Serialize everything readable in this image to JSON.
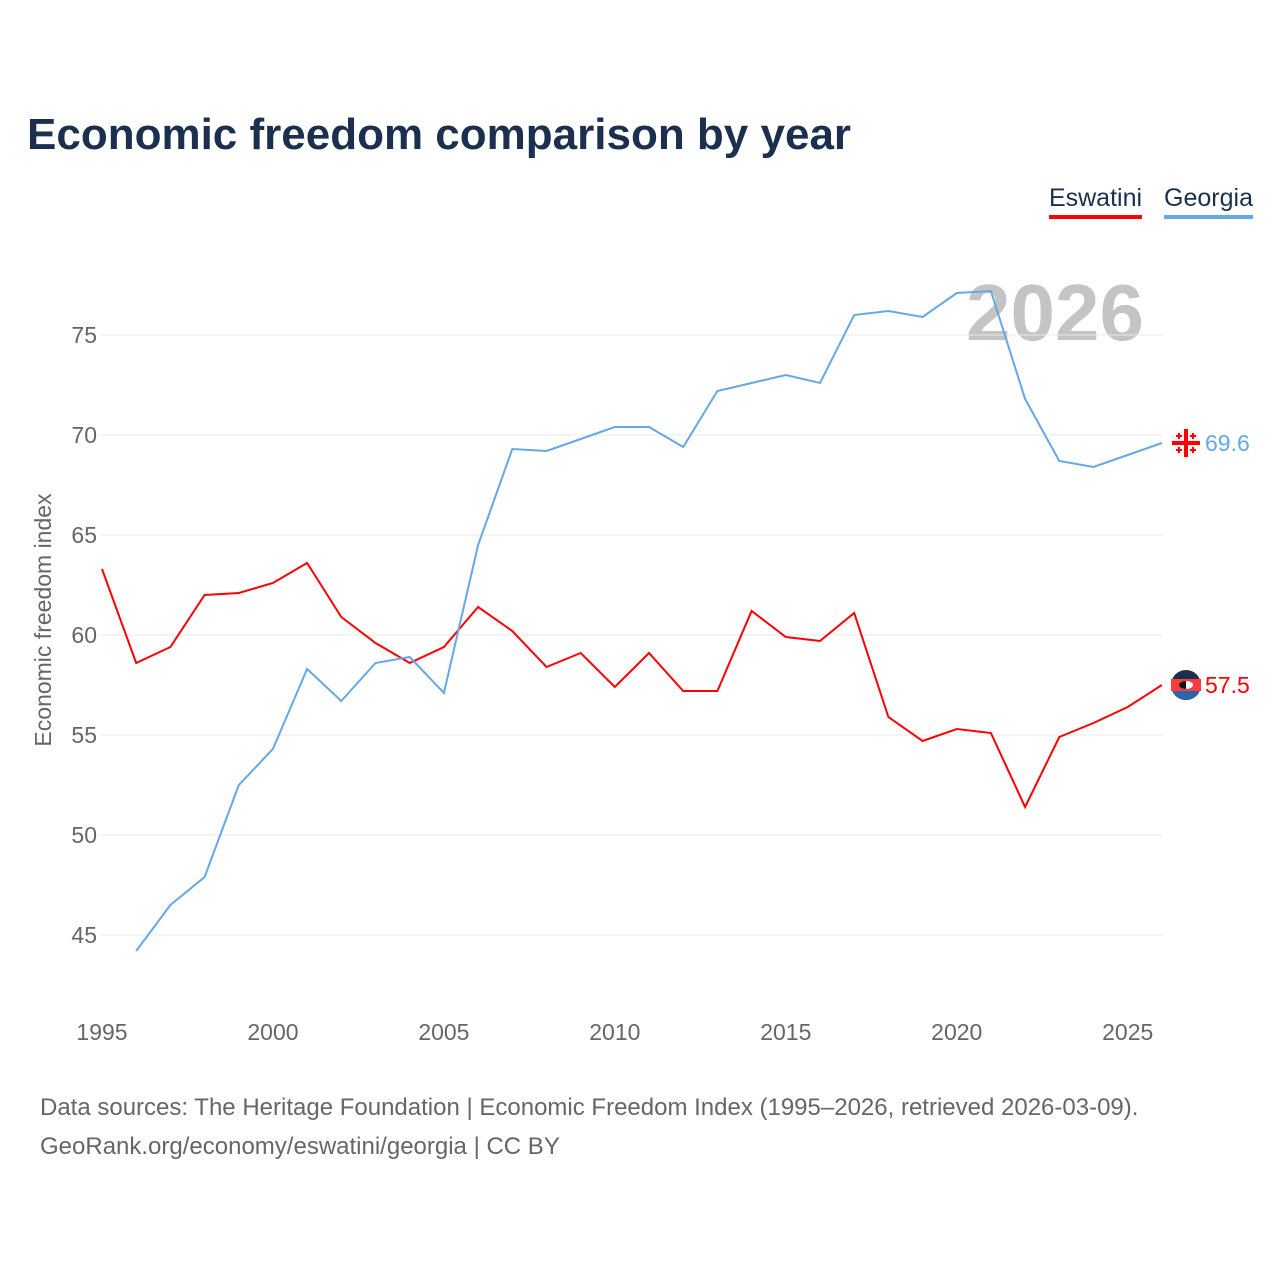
{
  "chart_data": {
    "type": "line",
    "title": "Economic freedom comparison by year",
    "xlabel": "",
    "ylabel": "Economic freedom index",
    "watermark_year": "2026",
    "xlim": [
      1995,
      2026
    ],
    "ylim": [
      42,
      79
    ],
    "xticks": [
      1995,
      2000,
      2005,
      2010,
      2015,
      2020,
      2025
    ],
    "yticks": [
      45,
      50,
      55,
      60,
      65,
      70,
      75
    ],
    "grid": true,
    "legend_position": "top-right",
    "x": [
      1995,
      1996,
      1997,
      1998,
      1999,
      2000,
      2001,
      2002,
      2003,
      2004,
      2005,
      2006,
      2007,
      2008,
      2009,
      2010,
      2011,
      2012,
      2013,
      2014,
      2015,
      2016,
      2017,
      2018,
      2019,
      2020,
      2021,
      2022,
      2023,
      2024,
      2025,
      2026
    ],
    "series": [
      {
        "name": "Eswatini",
        "color": "#ff0000",
        "end_label": "57.5",
        "values": [
          63.3,
          58.6,
          59.4,
          62.0,
          62.1,
          62.6,
          63.6,
          60.9,
          59.6,
          58.6,
          59.4,
          61.4,
          60.2,
          58.4,
          59.1,
          57.4,
          59.1,
          57.2,
          57.2,
          61.2,
          59.9,
          59.7,
          61.1,
          55.9,
          54.7,
          55.3,
          55.1,
          51.4,
          54.9,
          55.6,
          56.4,
          57.5
        ]
      },
      {
        "name": "Georgia",
        "color": "#64a8e6",
        "end_label": "69.6",
        "values": [
          null,
          44.2,
          46.5,
          47.9,
          52.5,
          54.3,
          58.3,
          56.7,
          58.6,
          58.9,
          57.1,
          64.5,
          69.3,
          69.2,
          69.8,
          70.4,
          70.4,
          69.4,
          72.2,
          72.6,
          73.0,
          72.6,
          76.0,
          76.2,
          75.9,
          77.1,
          77.2,
          71.8,
          68.7,
          68.4,
          69.0,
          69.6
        ]
      }
    ]
  },
  "footer": {
    "line1": "Data sources: The Heritage Foundation | Economic Freedom Index (1995–2026, retrieved 2026-03-09).",
    "line2": "GeoRank.org/economy/eswatini/georgia | CC BY"
  }
}
